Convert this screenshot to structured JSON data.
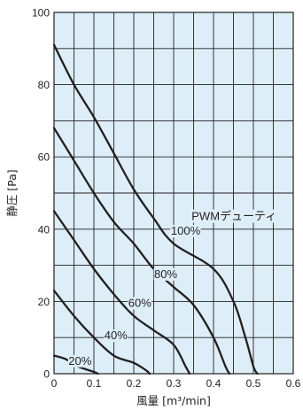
{
  "chart_data": {
    "type": "line",
    "xlabel": "風量 [m³/min]",
    "ylabel": "静圧 [Pa]",
    "xlim": [
      0,
      0.6
    ],
    "ylim": [
      0,
      100
    ],
    "x_ticks": [
      "0",
      "0.1",
      "0.2",
      "0.3",
      "0.4",
      "0.5",
      "0.6"
    ],
    "y_ticks": [
      "0",
      "20",
      "40",
      "60",
      "80",
      "100"
    ],
    "grid": true,
    "background": "#ddeef9",
    "line_color": "#231f20",
    "legend_title": "PWMデューティ",
    "series": [
      {
        "name": "100%",
        "points": [
          [
            0,
            91
          ],
          [
            0.05,
            80
          ],
          [
            0.1,
            71
          ],
          [
            0.15,
            61
          ],
          [
            0.2,
            51
          ],
          [
            0.25,
            43
          ],
          [
            0.3,
            36
          ],
          [
            0.4,
            29
          ],
          [
            0.45,
            20
          ],
          [
            0.48,
            10
          ],
          [
            0.5,
            2
          ],
          [
            0.51,
            0
          ]
        ]
      },
      {
        "name": "80%",
        "points": [
          [
            0,
            68
          ],
          [
            0.05,
            59
          ],
          [
            0.1,
            50
          ],
          [
            0.15,
            42
          ],
          [
            0.2,
            36
          ],
          [
            0.25,
            29
          ],
          [
            0.3,
            24
          ],
          [
            0.35,
            19
          ],
          [
            0.4,
            10
          ],
          [
            0.43,
            2
          ],
          [
            0.44,
            0
          ]
        ]
      },
      {
        "name": "60%",
        "points": [
          [
            0,
            45
          ],
          [
            0.05,
            37
          ],
          [
            0.1,
            29
          ],
          [
            0.15,
            22
          ],
          [
            0.2,
            16
          ],
          [
            0.25,
            12
          ],
          [
            0.3,
            8
          ],
          [
            0.33,
            2
          ],
          [
            0.34,
            0
          ]
        ]
      },
      {
        "name": "40%",
        "points": [
          [
            0,
            23
          ],
          [
            0.05,
            16
          ],
          [
            0.1,
            10
          ],
          [
            0.15,
            5
          ],
          [
            0.2,
            3
          ],
          [
            0.23,
            1
          ],
          [
            0.24,
            0
          ]
        ]
      },
      {
        "name": "20%",
        "points": [
          [
            0,
            5
          ],
          [
            0.03,
            4
          ],
          [
            0.06,
            2
          ],
          [
            0.1,
            0.5
          ],
          [
            0.11,
            0
          ]
        ]
      }
    ]
  }
}
